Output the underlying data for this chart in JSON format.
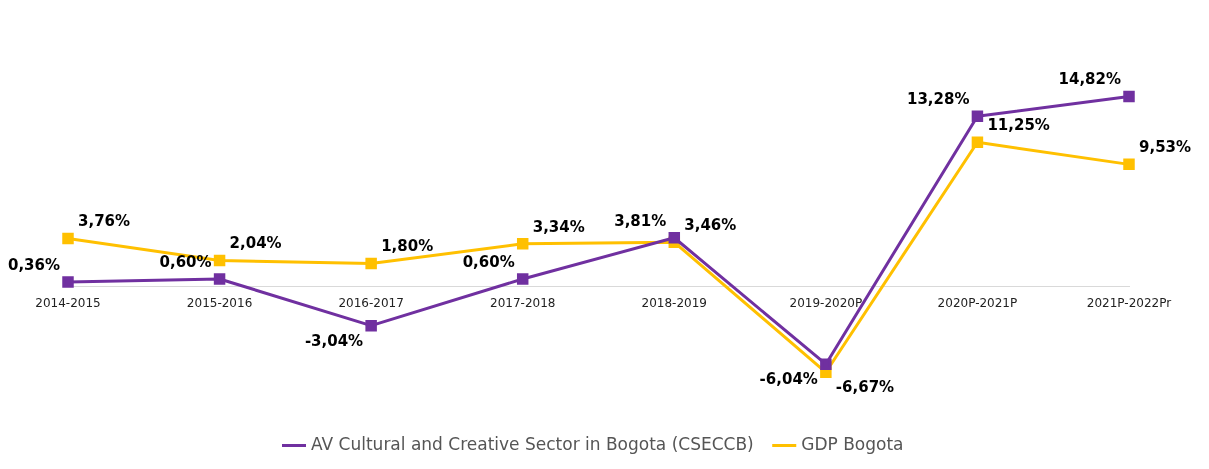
{
  "chart_data": {
    "type": "line",
    "categories": [
      "2014-2015",
      "2015-2016",
      "2016-2017",
      "2017-2018",
      "2018-2019",
      "2019-2020P",
      "2020P-2021P",
      "2021P-2022Pr"
    ],
    "series": [
      {
        "name": "AV Cultural and Creative Sector in Bogota (CSECCB)",
        "color": "#7030a0",
        "values": [
          0.36,
          0.6,
          -3.04,
          0.6,
          3.81,
          -6.04,
          13.28,
          14.82
        ],
        "value_labels": [
          "0,36%",
          "0,60%",
          "-3,04%",
          "0,60%",
          "3,81%",
          "-6,04%",
          "13,28%",
          "14,82%"
        ]
      },
      {
        "name": "GDP Bogota",
        "color": "#ffc000",
        "values": [
          3.76,
          2.04,
          1.8,
          3.34,
          3.46,
          -6.67,
          11.25,
          9.53
        ],
        "value_labels": [
          "3,76%",
          "2,04%",
          "1,80%",
          "3,34%",
          "3,46%",
          "-6,67%",
          "11,25%",
          "9,53%"
        ]
      }
    ],
    "tick_labels": "x",
    "grid": false,
    "legend": "bottom",
    "marker": "square",
    "line_style": "solid"
  }
}
